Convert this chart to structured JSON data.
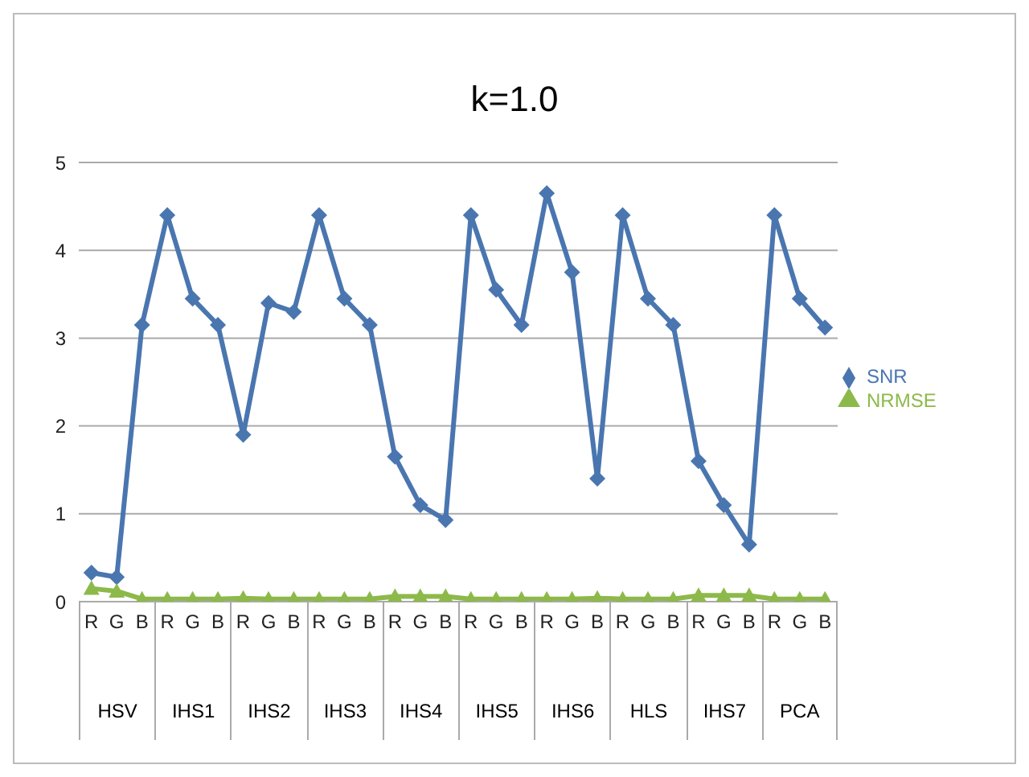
{
  "chart_data": {
    "type": "line",
    "title": "k=1.0",
    "categories": [
      "R",
      "G",
      "B",
      "R",
      "G",
      "B",
      "R",
      "G",
      "B",
      "R",
      "G",
      "B",
      "R",
      "G",
      "B",
      "R",
      "G",
      "B",
      "R",
      "G",
      "B",
      "R",
      "G",
      "B",
      "R",
      "G",
      "B",
      "R",
      "G",
      "B"
    ],
    "annotations": [
      "HSV",
      "IHS1",
      "IHS2",
      "IHS3",
      "IHS4",
      "IHS5",
      "IHS6",
      "HLS",
      "IHS7",
      "PCA"
    ],
    "series": [
      {
        "name": "SNR",
        "color": "#4a76b0",
        "marker": "diamond",
        "values": [
          0.33,
          0.28,
          3.15,
          4.4,
          3.45,
          3.15,
          1.9,
          3.4,
          3.3,
          4.4,
          3.45,
          3.15,
          1.65,
          1.1,
          0.93,
          4.4,
          3.55,
          3.15,
          4.65,
          3.75,
          1.4,
          4.4,
          3.45,
          3.15,
          1.6,
          1.1,
          0.65,
          4.4,
          3.45,
          3.12
        ]
      },
      {
        "name": "NRMSE",
        "color": "#8db94a",
        "marker": "triangle",
        "values": [
          0.15,
          0.12,
          0.03,
          0.03,
          0.03,
          0.03,
          0.04,
          0.03,
          0.03,
          0.03,
          0.03,
          0.03,
          0.06,
          0.06,
          0.06,
          0.03,
          0.03,
          0.03,
          0.03,
          0.03,
          0.04,
          0.03,
          0.03,
          0.03,
          0.07,
          0.07,
          0.07,
          0.03,
          0.03,
          0.03
        ]
      }
    ],
    "ylim": [
      0,
      5
    ],
    "yticks": [
      0,
      1,
      2,
      3,
      4,
      5
    ],
    "grid": "y",
    "legend": "right"
  }
}
